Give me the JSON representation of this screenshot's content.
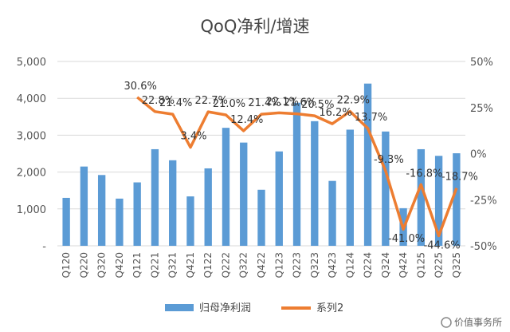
{
  "chart_data": {
    "type": "bar+line",
    "title": "QoQ净利/增速",
    "categories": [
      "Q120",
      "Q220",
      "Q320",
      "Q420",
      "Q121",
      "Q221",
      "Q321",
      "Q421",
      "Q122",
      "Q222",
      "Q322",
      "Q422",
      "Q123",
      "Q223",
      "Q323",
      "Q423",
      "Q124",
      "Q224",
      "Q324",
      "Q424",
      "Q125",
      "Q225",
      "Q325"
    ],
    "series": [
      {
        "name": "归母净利润",
        "type": "bar",
        "axis": "left",
        "color": "#5b9bd5",
        "values": [
          1300,
          2150,
          1920,
          1280,
          1720,
          2620,
          2320,
          1340,
          2100,
          3200,
          2800,
          1520,
          2560,
          3880,
          3380,
          1760,
          3150,
          4400,
          3100,
          1020,
          2620,
          2440,
          2510
        ]
      },
      {
        "name": "系列2",
        "type": "line",
        "axis": "right",
        "color": "#ed7d31",
        "values": [
          null,
          null,
          null,
          null,
          30.6,
          22.8,
          21.4,
          3.4,
          22.7,
          21.0,
          12.4,
          21.4,
          22.1,
          21.6,
          20.5,
          16.2,
          22.9,
          13.7,
          -9.3,
          -41.0,
          -16.8,
          -44.6,
          -18.7
        ],
        "labels": [
          "",
          "",
          "",
          "",
          "30.6%",
          "22.8%",
          "21.4%",
          "3.4%",
          "22.7%",
          "21.0%",
          "12.4%",
          "21.4%",
          "22.1%",
          "21.6%",
          "20.5%",
          "16.2%",
          "22.9%",
          "13.7%",
          "-9.3%",
          "-41.0%",
          "-16.8%",
          "-44.6%",
          "-18.7%"
        ]
      }
    ],
    "y_left": {
      "ylim": [
        0,
        5000
      ],
      "ticks": [
        "-",
        "1,000",
        "2,000",
        "3,000",
        "4,000",
        "5,000"
      ]
    },
    "y_right": {
      "ylim": [
        -50,
        50
      ],
      "ticks": [
        "-50%",
        "-25%",
        "0%",
        "25%",
        "50%"
      ]
    },
    "legend": [
      {
        "name": "归母净利润",
        "marker": "bar"
      },
      {
        "name": "系列2",
        "marker": "line"
      }
    ],
    "legend_position": "bottom",
    "grid": true
  },
  "watermark": "价值事务所"
}
